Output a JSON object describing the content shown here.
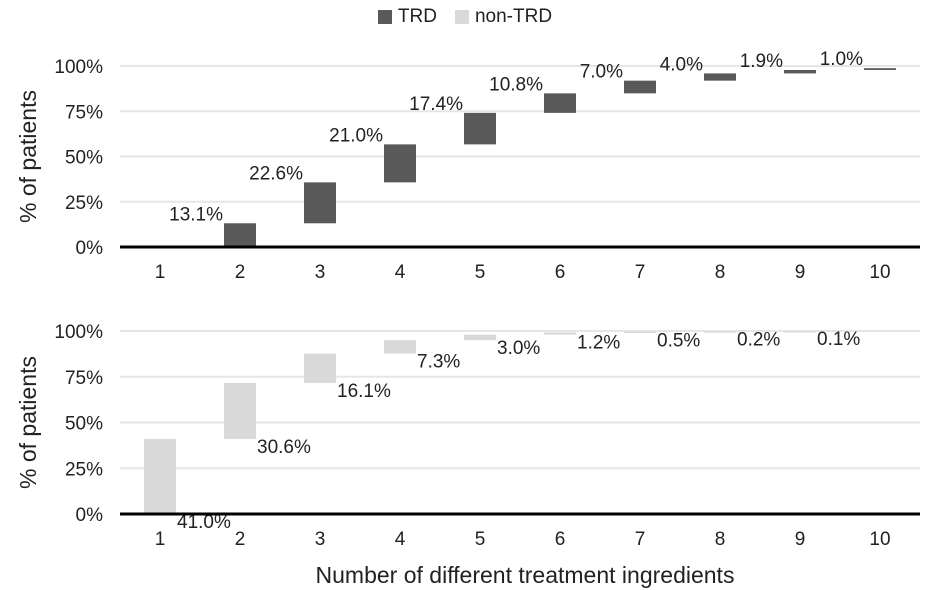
{
  "legend": {
    "trd_label": "TRD",
    "non_trd_label": "non-TRD"
  },
  "colors": {
    "trd": "#595959",
    "non_trd": "#d9d9d9",
    "grid": "#e6e6e6",
    "axis": "#000000"
  },
  "chart_data": [
    {
      "type": "bar",
      "subtype": "floating-waterfall",
      "panel": "top",
      "series_name": "TRD",
      "ylabel": "% of patients",
      "xlabel": "",
      "ylim": [
        0,
        100
      ],
      "yticks": [
        "0%",
        "25%",
        "50%",
        "75%",
        "100%"
      ],
      "categories": [
        "1",
        "2",
        "3",
        "4",
        "5",
        "6",
        "7",
        "8",
        "9",
        "10"
      ],
      "values": [
        0.0,
        13.1,
        22.6,
        21.0,
        17.4,
        10.8,
        7.0,
        4.0,
        1.9,
        1.0
      ],
      "labels": [
        "",
        "13.1%",
        "22.6%",
        "21.0%",
        "17.4%",
        "10.8%",
        "7.0%",
        "4.0%",
        "1.9%",
        "1.0%"
      ],
      "grid": true
    },
    {
      "type": "bar",
      "subtype": "floating-waterfall",
      "panel": "bottom",
      "series_name": "non-TRD",
      "ylabel": "% of patients",
      "xlabel": "Number of different treatment ingredients",
      "ylim": [
        0,
        100
      ],
      "yticks": [
        "0%",
        "25%",
        "50%",
        "75%",
        "100%"
      ],
      "categories": [
        "1",
        "2",
        "3",
        "4",
        "5",
        "6",
        "7",
        "8",
        "9",
        "10"
      ],
      "values": [
        41.0,
        30.6,
        16.1,
        7.3,
        3.0,
        1.2,
        0.5,
        0.2,
        0.1,
        0.0
      ],
      "labels": [
        "41.0%",
        "30.6%",
        "16.1%",
        "7.3%",
        "3.0%",
        "1.2%",
        "0.5%",
        "0.2%",
        "0.1%",
        ""
      ],
      "grid": true
    }
  ]
}
